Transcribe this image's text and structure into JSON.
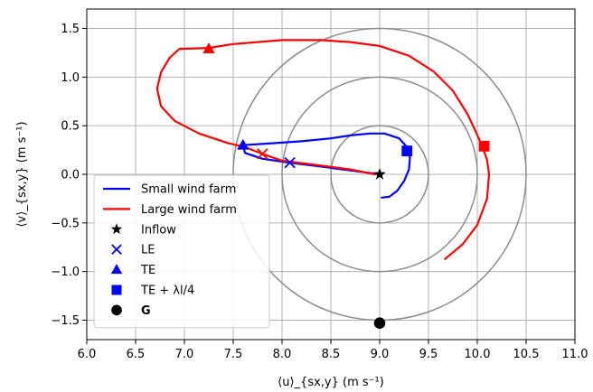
{
  "chart_data": {
    "type": "line",
    "xlabel": "⟨u⟩_{sx,y} (m s⁻¹)",
    "ylabel": "⟨v⟩_{sx,y} (m s⁻¹)",
    "xlim": [
      6.0,
      11.0
    ],
    "ylim": [
      -1.7,
      1.7
    ],
    "xticks": [
      "6.0",
      "6.5",
      "7.0",
      "7.5",
      "8.0",
      "8.5",
      "9.0",
      "9.5",
      "10.0",
      "10.5",
      "11.0"
    ],
    "yticks": [
      "1.5",
      "1.0",
      "0.5",
      "0.0",
      "−0.5",
      "−1.0",
      "−1.5"
    ],
    "xtick_values": [
      6.0,
      6.5,
      7.0,
      7.5,
      8.0,
      8.5,
      9.0,
      9.5,
      10.0,
      10.5,
      11.0
    ],
    "ytick_values": [
      1.5,
      1.0,
      0.5,
      0.0,
      -0.5,
      -1.0,
      -1.5
    ],
    "grid": true,
    "legend_position": "lower-left",
    "circles": {
      "center": [
        9.0,
        0.0
      ],
      "radii": [
        0.5,
        1.0,
        1.5
      ],
      "color": "#8c8c8c"
    },
    "series": [
      {
        "name": "Small wind farm",
        "color": "#0000ff",
        "x": [
          9.02,
          9.1,
          9.18,
          9.25,
          9.3,
          9.31,
          9.28,
          9.2,
          9.05,
          8.9,
          8.7,
          8.5,
          8.2,
          7.9,
          7.6,
          7.62,
          7.8,
          8.08,
          8.4,
          8.7,
          9.0
        ],
        "y": [
          -0.24,
          -0.23,
          -0.17,
          -0.07,
          0.05,
          0.17,
          0.28,
          0.37,
          0.42,
          0.42,
          0.4,
          0.37,
          0.34,
          0.32,
          0.3,
          0.22,
          0.16,
          0.12,
          0.08,
          0.04,
          0.0
        ]
      },
      {
        "name": "Large wind farm",
        "color": "#ff0000",
        "x": [
          9.67,
          9.85,
          10.0,
          10.1,
          10.12,
          10.1,
          10.05,
          9.98,
          9.9,
          9.75,
          9.55,
          9.3,
          9.0,
          8.7,
          8.4,
          8.0,
          7.5,
          7.25,
          6.95,
          6.85,
          6.76,
          6.72,
          6.76,
          6.9,
          7.15,
          7.45,
          7.62,
          7.8,
          8.0,
          8.4,
          8.7,
          8.95
        ],
        "y": [
          -0.87,
          -0.72,
          -0.52,
          -0.25,
          0.0,
          0.15,
          0.29,
          0.45,
          0.62,
          0.86,
          1.06,
          1.22,
          1.32,
          1.36,
          1.38,
          1.38,
          1.34,
          1.3,
          1.29,
          1.2,
          1.05,
          0.88,
          0.7,
          0.55,
          0.42,
          0.32,
          0.28,
          0.21,
          0.14,
          0.09,
          0.05,
          0.0
        ]
      }
    ],
    "markers": [
      {
        "label": "Inflow",
        "shape": "star",
        "color": "#000000",
        "x": 9.0,
        "y": 0.0
      },
      {
        "label": "LE",
        "shape": "x",
        "color": "#0000ff",
        "x": 8.08,
        "y": 0.12
      },
      {
        "label": "LE",
        "shape": "x",
        "color": "#ff0000",
        "x": 7.8,
        "y": 0.21
      },
      {
        "label": "TE",
        "shape": "triangle",
        "color": "#0000ff",
        "x": 7.6,
        "y": 0.3
      },
      {
        "label": "TE",
        "shape": "triangle",
        "color": "#ff0000",
        "x": 7.25,
        "y": 1.29
      },
      {
        "label": "TE + λl/4",
        "shape": "square",
        "color": "#0000ff",
        "x": 9.28,
        "y": 0.24
      },
      {
        "label": "TE + λl/4",
        "shape": "square",
        "color": "#ff0000",
        "x": 10.07,
        "y": 0.29
      },
      {
        "label": "G",
        "shape": "circle",
        "color": "#000000",
        "x": 9.0,
        "y": -1.53
      }
    ],
    "legend": [
      {
        "label": "Small wind farm",
        "kind": "line",
        "color": "#0000ff"
      },
      {
        "label": "Large wind farm",
        "kind": "line",
        "color": "#ff0000"
      },
      {
        "label": "Inflow",
        "kind": "star",
        "color": "#000000"
      },
      {
        "label": "LE",
        "kind": "x",
        "color": "#0000ff"
      },
      {
        "label": "TE",
        "kind": "triangle",
        "color": "#0000ff"
      },
      {
        "label": "TE + λl/4",
        "kind": "square",
        "color": "#0000ff"
      },
      {
        "label": "G",
        "kind": "circle",
        "color": "#000000"
      }
    ]
  }
}
